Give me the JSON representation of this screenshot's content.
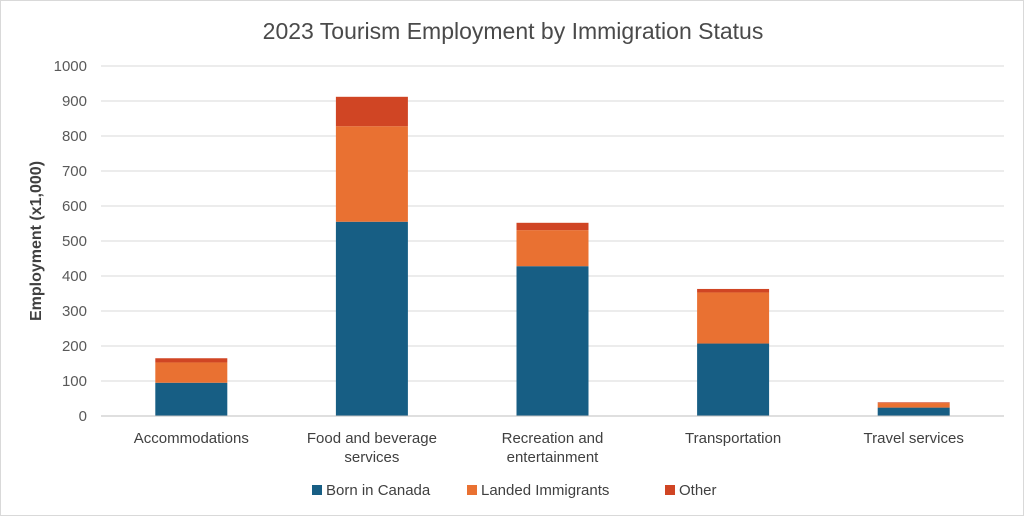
{
  "chart_data": {
    "type": "bar",
    "stacked": true,
    "title": "2023 Tourism Employment by Immigration Status",
    "xlabel": "",
    "ylabel": "Employment (x1,000)",
    "ylim": [
      0,
      1000
    ],
    "yticks": [
      0,
      100,
      200,
      300,
      400,
      500,
      600,
      700,
      800,
      900,
      1000
    ],
    "grid": true,
    "legend_position": "bottom",
    "categories": [
      [
        "Accommodations"
      ],
      [
        "Food and beverage",
        "services"
      ],
      [
        "Recreation and",
        "entertainment"
      ],
      [
        "Transportation"
      ],
      [
        "Travel services"
      ]
    ],
    "series": [
      {
        "name": "Born in Canada",
        "color": "#175e84",
        "values": [
          95,
          555,
          428,
          207,
          24
        ]
      },
      {
        "name": "Landed Immigrants",
        "color": "#e97132",
        "values": [
          58,
          273,
          103,
          146,
          13
        ]
      },
      {
        "name": "Other",
        "color": "#d04524",
        "values": [
          12,
          84,
          21,
          10,
          2
        ]
      }
    ]
  }
}
